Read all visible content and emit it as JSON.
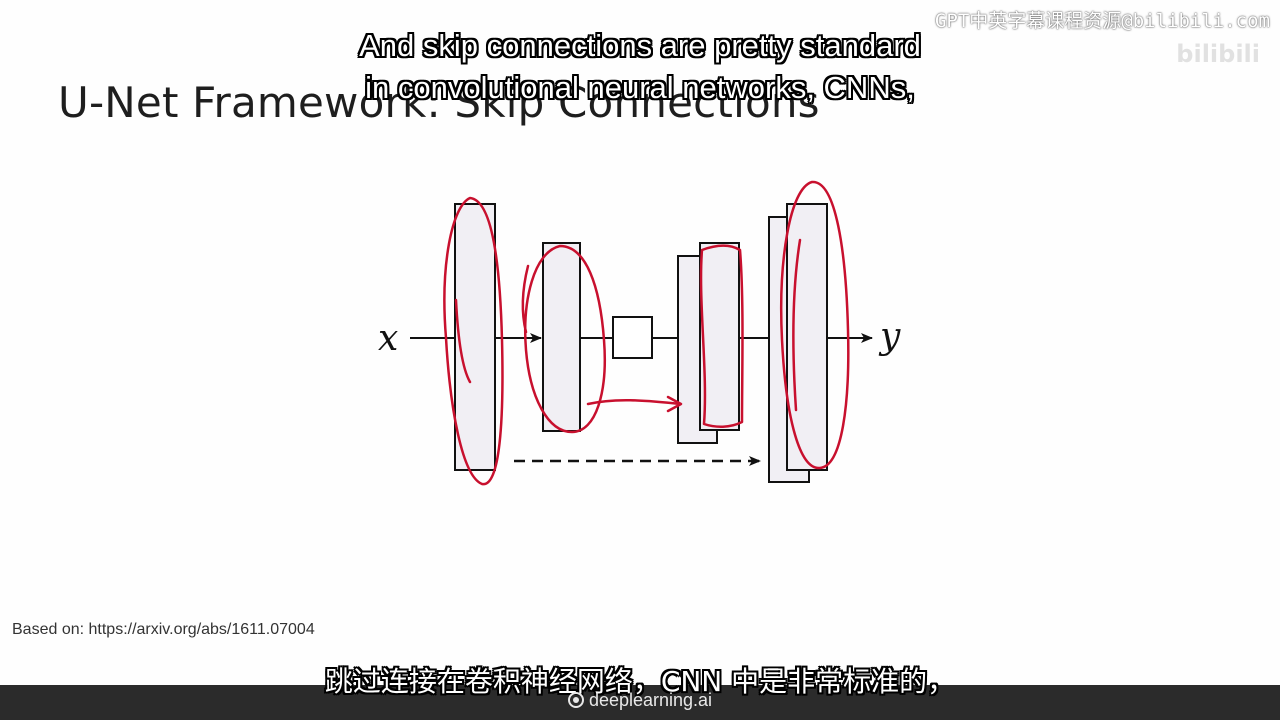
{
  "slide": {
    "title": "U-Net Framework: Skip Connections",
    "based_on": "Based on: https://arxiv.org/abs/1611.07004"
  },
  "diagram": {
    "input_label": "x",
    "output_label": "y",
    "colors": {
      "block_fill": "#f1eff4",
      "stroke": "#111111",
      "annotation": "#c8102e"
    }
  },
  "subtitles": {
    "english_line1": "And skip connections are pretty standard",
    "english_line2": "in convolutional neural networks, CNNs,",
    "chinese": "跳过连接在卷积神经网络，CNN 中是非常标准的，"
  },
  "watermark": {
    "text": "GPT中英字幕课程资源@bilibili.com",
    "logo": "bilibili"
  },
  "footer": {
    "brand": "deeplearning.ai",
    "brand_icon": "deeplearning-logo-icon"
  }
}
